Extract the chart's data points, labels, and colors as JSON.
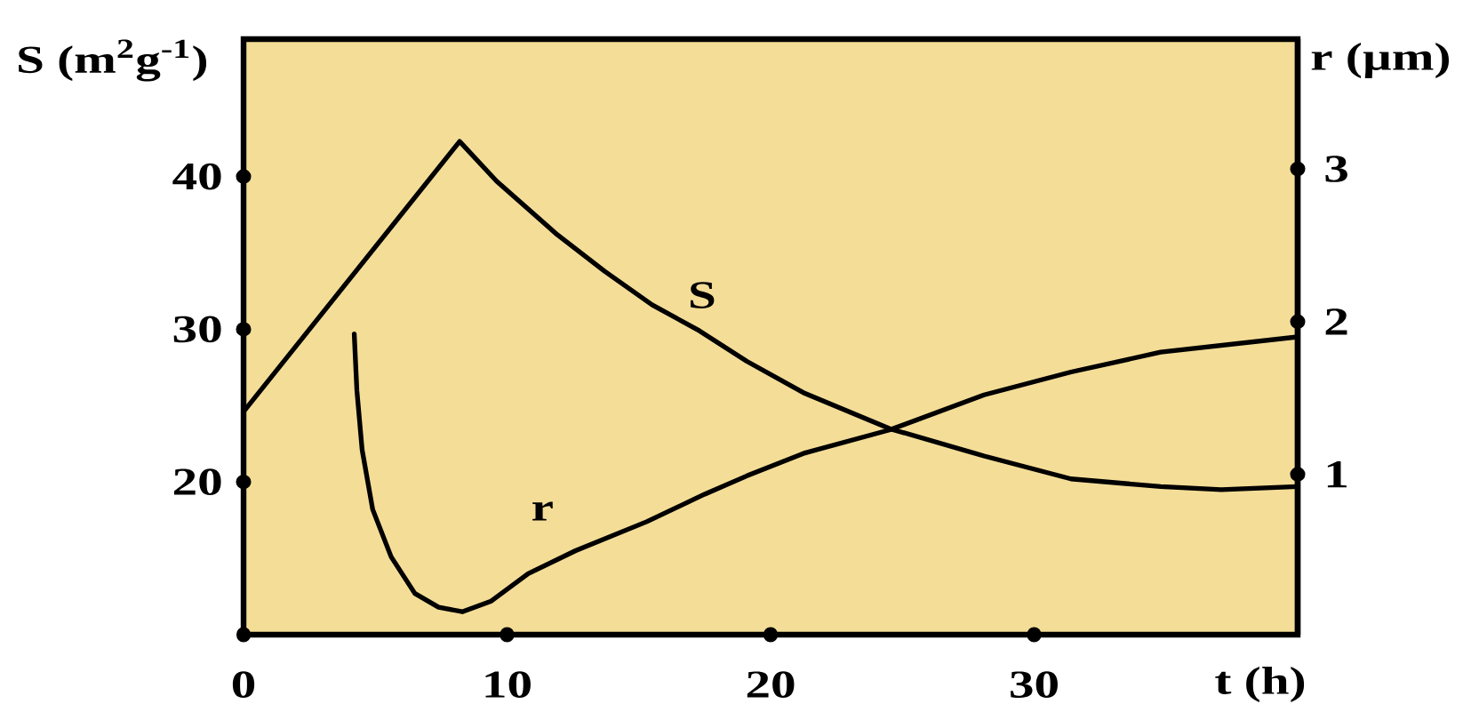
{
  "chart_data": {
    "type": "line",
    "xlabel": "t (h)",
    "ylabel": "S (m$^{2}$g$^{-1}$)",
    "y2label": "r (µm)",
    "xlim": [
      0,
      40
    ],
    "xticks": [
      0,
      10,
      20,
      30
    ],
    "ylim": [
      10,
      49
    ],
    "yticks": [
      20,
      30,
      40
    ],
    "y2lim": [
      -0.05,
      3.85
    ],
    "y2ticks": [
      1,
      2,
      3
    ],
    "series": [
      {
        "name": "S",
        "color": "#000000",
        "x": [
          0,
          8.2,
          9.6,
          11.9,
          13.7,
          15.5,
          17.3,
          19.1,
          21.3,
          24.5,
          28.1,
          31.4,
          34.8,
          37.1,
          40
        ],
        "values": [
          24.6,
          42.3,
          39.7,
          36.2,
          33.8,
          31.6,
          29.9,
          27.9,
          25.8,
          23.5,
          21.7,
          20.2,
          19.7,
          19.5,
          19.7
        ]
      },
      {
        "name": "r",
        "color": "#000000",
        "axis": "y2",
        "x": [
          4.2,
          4.3,
          4.5,
          4.9,
          5.6,
          6.5,
          7.4,
          8.3,
          9.4,
          10.8,
          12.6,
          15.3,
          17.5,
          19.1,
          21.3,
          24.5,
          28.1,
          31.4,
          34.8,
          40
        ],
        "values": [
          1.92,
          1.55,
          1.16,
          0.77,
          0.46,
          0.22,
          0.13,
          0.1,
          0.17,
          0.35,
          0.5,
          0.69,
          0.87,
          0.99,
          1.14,
          1.29,
          1.52,
          1.67,
          1.8,
          1.9
        ]
      }
    ]
  }
}
